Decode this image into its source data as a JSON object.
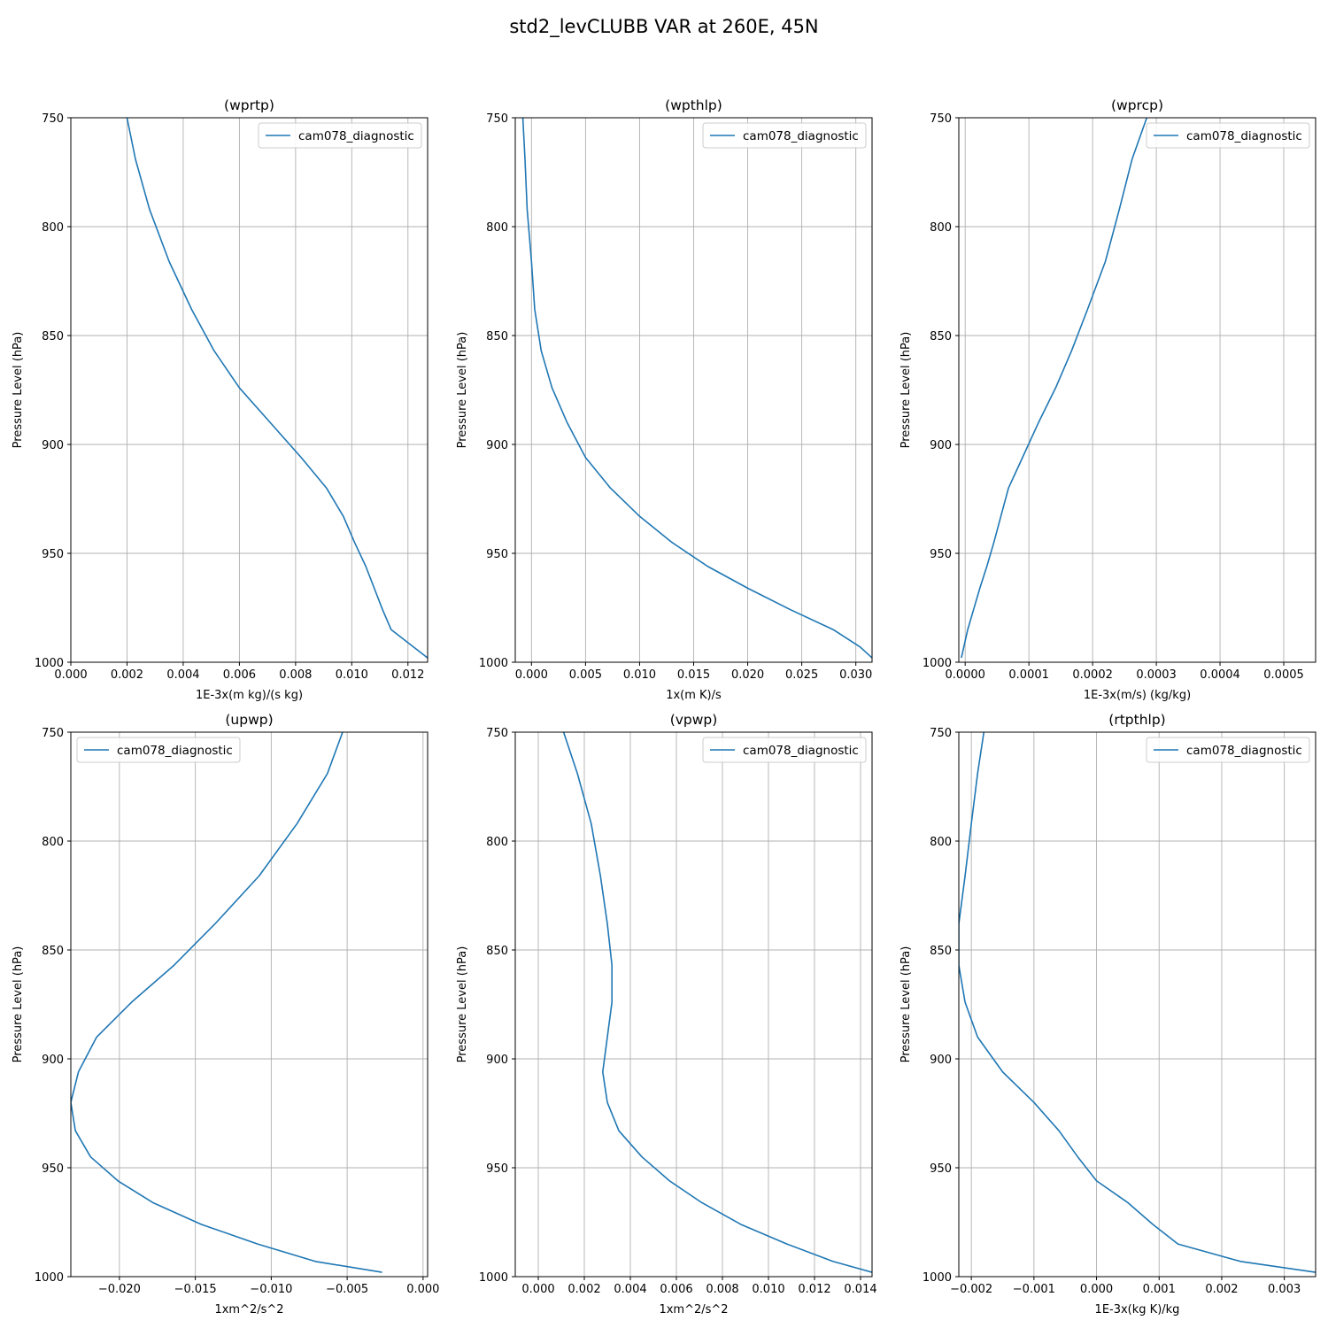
{
  "figure": {
    "title": "std2_levCLUBB VAR at 260E, 45N"
  },
  "chart_data": [
    {
      "type": "line",
      "title": "(wprtp)",
      "xlabel": "1E-3x(m kg)/(s kg)",
      "ylabel": "Pressure Level (hPa)",
      "xlim": [
        0,
        0.0127
      ],
      "ylim": [
        1000,
        750
      ],
      "y_inverted": true,
      "grid": true,
      "xticks": [
        0,
        0.002,
        0.004,
        0.006,
        0.008,
        0.01,
        0.012
      ],
      "xtick_labels": [
        "0.000",
        "0.002",
        "0.004",
        "0.006",
        "0.008",
        "0.010",
        "0.012"
      ],
      "yticks": [
        750,
        800,
        850,
        900,
        950,
        1000
      ],
      "ytick_labels": [
        "750",
        "800",
        "850",
        "900",
        "950",
        "1000"
      ],
      "legend_position": "top-right",
      "series": [
        {
          "name": "cam078_diagnostic",
          "color": "#1f77b4",
          "x": [
            0.002,
            0.0023,
            0.0028,
            0.0035,
            0.0043,
            0.0051,
            0.006,
            0.0071,
            0.0082,
            0.0091,
            0.0097,
            0.0101,
            0.0105,
            0.0108,
            0.0111,
            0.0114,
            0.0127
          ],
          "y": [
            750,
            769,
            792,
            816,
            838,
            857,
            874,
            890,
            906,
            920,
            933,
            945,
            956,
            966,
            976,
            985,
            998
          ]
        }
      ]
    },
    {
      "type": "line",
      "title": "(wpthlp)",
      "xlabel": "1x(m K)/s",
      "ylabel": "Pressure Level (hPa)",
      "xlim": [
        -0.0015,
        0.0315
      ],
      "ylim": [
        1000,
        750
      ],
      "y_inverted": true,
      "grid": true,
      "xticks": [
        0,
        0.005,
        0.01,
        0.015,
        0.02,
        0.025,
        0.03
      ],
      "xtick_labels": [
        "0.000",
        "0.005",
        "0.010",
        "0.015",
        "0.020",
        "0.025",
        "0.030"
      ],
      "yticks": [
        750,
        800,
        850,
        900,
        950,
        1000
      ],
      "ytick_labels": [
        "750",
        "800",
        "850",
        "900",
        "950",
        "1000"
      ],
      "legend_position": "top-right",
      "series": [
        {
          "name": "cam078_diagnostic",
          "color": "#1f77b4",
          "x": [
            -0.0008,
            -0.0006,
            -0.0004,
            0.0,
            0.0003,
            0.0009,
            0.0019,
            0.0033,
            0.005,
            0.0073,
            0.01,
            0.013,
            0.0163,
            0.02,
            0.024,
            0.0279,
            0.0304,
            0.0315
          ],
          "y": [
            750,
            769,
            792,
            816,
            838,
            857,
            874,
            890,
            906,
            920,
            933,
            945,
            956,
            966,
            976,
            985,
            993,
            998
          ]
        }
      ]
    },
    {
      "type": "line",
      "title": "(wprcp)",
      "xlabel": "1E-3x(m/s) (kg/kg)",
      "ylabel": "Pressure Level (hPa)",
      "xlim": [
        -1e-05,
        0.00055
      ],
      "ylim": [
        1000,
        750
      ],
      "y_inverted": true,
      "grid": true,
      "xticks": [
        0,
        0.0001,
        0.0002,
        0.0003,
        0.0004,
        0.0005
      ],
      "xtick_labels": [
        "0.0000",
        "0.0001",
        "0.0002",
        "0.0003",
        "0.0004",
        "0.0005"
      ],
      "yticks": [
        750,
        800,
        850,
        900,
        950,
        1000
      ],
      "ytick_labels": [
        "750",
        "800",
        "850",
        "900",
        "950",
        "1000"
      ],
      "legend_position": "top-right",
      "series": [
        {
          "name": "cam078_diagnostic",
          "color": "#1f77b4",
          "x": [
            0.000285,
            0.000262,
            0.000242,
            0.00022,
            0.000192,
            0.000167,
            0.000142,
            0.000115,
            9e-05,
            6.8e-05,
            5.6e-05,
            4.5e-05,
            3.4e-05,
            2.3e-05,
            1.3e-05,
            4e-06,
            -6e-06
          ],
          "y": [
            750,
            769,
            792,
            816,
            838,
            857,
            874,
            890,
            906,
            920,
            933,
            945,
            956,
            966,
            976,
            985,
            998
          ]
        }
      ]
    },
    {
      "type": "line",
      "title": "(upwp)",
      "xlabel": "1xm^2/s^2",
      "ylabel": "Pressure Level (hPa)",
      "xlim": [
        -0.0232,
        0.0003
      ],
      "ylim": [
        1000,
        750
      ],
      "y_inverted": true,
      "grid": true,
      "xticks": [
        -0.02,
        -0.015,
        -0.01,
        -0.005,
        0
      ],
      "xtick_labels": [
        "−0.020",
        "−0.015",
        "−0.010",
        "−0.005",
        "0.000"
      ],
      "yticks": [
        750,
        800,
        850,
        900,
        950,
        1000
      ],
      "ytick_labels": [
        "750",
        "800",
        "850",
        "900",
        "950",
        "1000"
      ],
      "legend_position": "top-left",
      "series": [
        {
          "name": "cam078_diagnostic",
          "color": "#1f77b4",
          "x": [
            -0.0053,
            -0.0063,
            -0.0083,
            -0.0108,
            -0.0137,
            -0.0164,
            -0.0192,
            -0.0215,
            -0.0227,
            -0.0232,
            -0.0229,
            -0.0219,
            -0.0201,
            -0.0178,
            -0.0146,
            -0.0109,
            -0.0071,
            -0.0027
          ],
          "y": [
            750,
            769,
            792,
            816,
            838,
            857,
            874,
            890,
            906,
            920,
            933,
            945,
            956,
            966,
            976,
            985,
            993,
            998
          ]
        }
      ]
    },
    {
      "type": "line",
      "title": "(vpwp)",
      "xlabel": "1xm^2/s^2",
      "ylabel": "Pressure Level (hPa)",
      "xlim": [
        -0.001,
        0.0145
      ],
      "ylim": [
        1000,
        750
      ],
      "y_inverted": true,
      "grid": true,
      "xticks": [
        0,
        0.002,
        0.004,
        0.006,
        0.008,
        0.01,
        0.012,
        0.014
      ],
      "xtick_labels": [
        "0.000",
        "0.002",
        "0.004",
        "0.006",
        "0.008",
        "0.010",
        "0.012",
        "0.014"
      ],
      "yticks": [
        750,
        800,
        850,
        900,
        950,
        1000
      ],
      "ytick_labels": [
        "750",
        "800",
        "850",
        "900",
        "950",
        "1000"
      ],
      "legend_position": "top-right",
      "series": [
        {
          "name": "cam078_diagnostic",
          "color": "#1f77b4",
          "x": [
            0.0011,
            0.0017,
            0.0023,
            0.0027,
            0.003,
            0.0032,
            0.0032,
            0.003,
            0.0028,
            0.003,
            0.0035,
            0.0045,
            0.0057,
            0.0071,
            0.0088,
            0.0108,
            0.0128,
            0.0145
          ],
          "y": [
            750,
            769,
            792,
            816,
            838,
            857,
            874,
            890,
            906,
            920,
            933,
            945,
            956,
            966,
            976,
            985,
            993,
            998
          ]
        }
      ]
    },
    {
      "type": "line",
      "title": "(rtpthlp)",
      "xlabel": "1E-3x(kg K)/kg",
      "ylabel": "Pressure Level (hPa)",
      "xlim": [
        -0.0022,
        0.0035
      ],
      "ylim": [
        1000,
        750
      ],
      "y_inverted": true,
      "grid": true,
      "xticks": [
        -0.002,
        -0.001,
        0,
        0.001,
        0.002,
        0.003
      ],
      "xtick_labels": [
        "−0.002",
        "−0.001",
        "0.000",
        "0.001",
        "0.002",
        "0.003"
      ],
      "yticks": [
        750,
        800,
        850,
        900,
        950,
        1000
      ],
      "ytick_labels": [
        "750",
        "800",
        "850",
        "900",
        "950",
        "1000"
      ],
      "legend_position": "top-right",
      "series": [
        {
          "name": "cam078_diagnostic",
          "color": "#1f77b4",
          "x": [
            -0.0018,
            -0.0019,
            -0.002,
            -0.0021,
            -0.0022,
            -0.0022,
            -0.0021,
            -0.0019,
            -0.0015,
            -0.001,
            -0.0006,
            -0.0003,
            0.0,
            0.0005,
            0.0009,
            0.0013,
            0.0023,
            0.0035
          ],
          "y": [
            750,
            769,
            792,
            816,
            838,
            857,
            874,
            890,
            906,
            920,
            933,
            945,
            956,
            966,
            976,
            985,
            993,
            998
          ]
        }
      ]
    }
  ]
}
